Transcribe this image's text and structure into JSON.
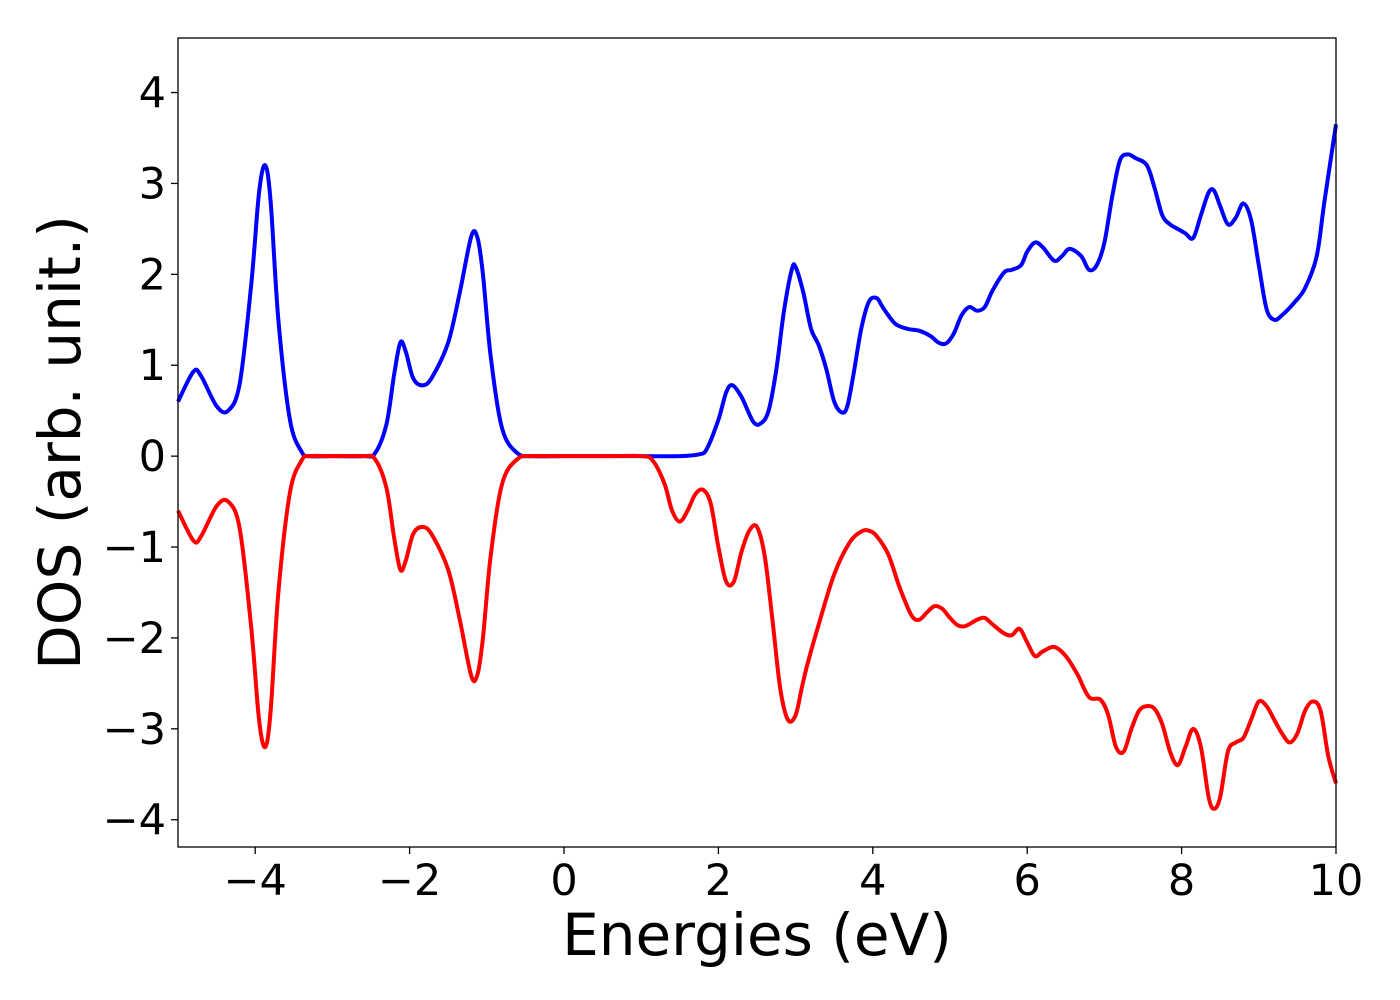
{
  "chart_data": {
    "type": "line",
    "title": "",
    "xlabel": "Energies (eV)",
    "ylabel": "DOS (arb. unit.)",
    "xlim": [
      -5,
      10
    ],
    "ylim": [
      -4.3,
      4.6
    ],
    "xticks": [
      -4,
      -2,
      0,
      2,
      4,
      6,
      8,
      10
    ],
    "xtick_labels": [
      "−4",
      "−2",
      "0",
      "2",
      "4",
      "6",
      "8",
      "10"
    ],
    "yticks": [
      -4,
      -3,
      -2,
      -1,
      0,
      1,
      2,
      3,
      4
    ],
    "ytick_labels": [
      "−4",
      "−3",
      "−2",
      "−1",
      "0",
      "1",
      "2",
      "3",
      "4"
    ],
    "grid": false,
    "legend": "none",
    "series": [
      {
        "color": "#0000ff",
        "x": [
          -5.0,
          -4.8,
          -4.7,
          -4.5,
          -4.35,
          -4.2,
          -4.05,
          -3.95,
          -3.87,
          -3.8,
          -3.7,
          -3.55,
          -3.4,
          -3.3,
          -3.0,
          -2.6,
          -2.45,
          -2.3,
          -2.2,
          -2.12,
          -2.05,
          -1.95,
          -1.82,
          -1.7,
          -1.5,
          -1.35,
          -1.2,
          -1.12,
          -1.05,
          -0.95,
          -0.8,
          -0.6,
          -0.4,
          0.0,
          0.5,
          1.0,
          1.5,
          1.75,
          1.85,
          2.0,
          2.1,
          2.18,
          2.3,
          2.45,
          2.55,
          2.65,
          2.75,
          2.85,
          2.95,
          3.0,
          3.1,
          3.2,
          3.3,
          3.4,
          3.5,
          3.6,
          3.67,
          3.75,
          3.85,
          3.95,
          4.05,
          4.12,
          4.2,
          4.3,
          4.45,
          4.6,
          4.75,
          4.85,
          4.95,
          5.05,
          5.15,
          5.25,
          5.35,
          5.45,
          5.55,
          5.7,
          5.8,
          5.92,
          6.0,
          6.1,
          6.2,
          6.35,
          6.45,
          6.55,
          6.7,
          6.8,
          6.9,
          7.0,
          7.1,
          7.2,
          7.3,
          7.4,
          7.55,
          7.65,
          7.75,
          7.85,
          7.95,
          8.05,
          8.15,
          8.25,
          8.35,
          8.42,
          8.5,
          8.6,
          8.7,
          8.8,
          8.9,
          9.0,
          9.1,
          9.2,
          9.3,
          9.45,
          9.6,
          9.75,
          9.85,
          10.0
        ],
        "y": [
          0.6,
          0.93,
          0.88,
          0.55,
          0.5,
          0.8,
          1.9,
          2.9,
          3.2,
          2.8,
          1.5,
          0.4,
          0.05,
          0.0,
          0.0,
          0.0,
          0.03,
          0.35,
          0.9,
          1.25,
          1.15,
          0.85,
          0.78,
          0.88,
          1.25,
          1.8,
          2.42,
          2.4,
          2.0,
          1.1,
          0.3,
          0.03,
          0.0,
          0.0,
          0.0,
          0.0,
          0.0,
          0.02,
          0.08,
          0.4,
          0.7,
          0.78,
          0.65,
          0.38,
          0.36,
          0.5,
          0.95,
          1.6,
          2.05,
          2.08,
          1.8,
          1.4,
          1.22,
          0.95,
          0.6,
          0.48,
          0.55,
          0.9,
          1.4,
          1.7,
          1.74,
          1.65,
          1.55,
          1.45,
          1.4,
          1.38,
          1.32,
          1.25,
          1.24,
          1.35,
          1.55,
          1.64,
          1.6,
          1.64,
          1.82,
          2.02,
          2.05,
          2.1,
          2.25,
          2.35,
          2.3,
          2.15,
          2.2,
          2.28,
          2.2,
          2.05,
          2.1,
          2.35,
          2.85,
          3.25,
          3.32,
          3.28,
          3.2,
          2.95,
          2.65,
          2.55,
          2.5,
          2.45,
          2.4,
          2.65,
          2.9,
          2.92,
          2.75,
          2.55,
          2.62,
          2.78,
          2.6,
          2.1,
          1.62,
          1.5,
          1.55,
          1.68,
          1.85,
          2.2,
          2.8,
          3.65
        ]
      },
      {
        "color": "#ff0000",
        "x": [
          -5.0,
          -4.8,
          -4.7,
          -4.5,
          -4.35,
          -4.2,
          -4.05,
          -3.95,
          -3.87,
          -3.8,
          -3.7,
          -3.55,
          -3.4,
          -3.3,
          -3.0,
          -2.6,
          -2.45,
          -2.3,
          -2.2,
          -2.12,
          -2.05,
          -1.95,
          -1.82,
          -1.7,
          -1.5,
          -1.35,
          -1.2,
          -1.12,
          -1.05,
          -0.95,
          -0.8,
          -0.6,
          -0.4,
          0.0,
          0.5,
          1.0,
          1.15,
          1.3,
          1.4,
          1.5,
          1.6,
          1.7,
          1.8,
          1.9,
          2.0,
          2.1,
          2.2,
          2.3,
          2.4,
          2.5,
          2.6,
          2.7,
          2.8,
          2.9,
          3.0,
          3.08,
          3.15,
          3.3,
          3.5,
          3.7,
          3.85,
          3.95,
          4.05,
          4.2,
          4.35,
          4.5,
          4.6,
          4.7,
          4.8,
          4.9,
          5.0,
          5.1,
          5.2,
          5.35,
          5.45,
          5.55,
          5.7,
          5.8,
          5.9,
          6.0,
          6.1,
          6.2,
          6.35,
          6.5,
          6.65,
          6.8,
          6.95,
          7.05,
          7.15,
          7.25,
          7.35,
          7.45,
          7.55,
          7.65,
          7.75,
          7.85,
          7.95,
          8.05,
          8.15,
          8.25,
          8.35,
          8.42,
          8.5,
          8.6,
          8.7,
          8.8,
          8.9,
          9.0,
          9.1,
          9.2,
          9.3,
          9.4,
          9.5,
          9.6,
          9.7,
          9.8,
          9.9,
          10.0
        ],
        "y": [
          -0.6,
          -0.93,
          -0.88,
          -0.55,
          -0.5,
          -0.8,
          -1.9,
          -2.9,
          -3.2,
          -2.8,
          -1.5,
          -0.4,
          -0.05,
          0.0,
          0.0,
          0.0,
          -0.03,
          -0.35,
          -0.9,
          -1.25,
          -1.15,
          -0.85,
          -0.78,
          -0.88,
          -1.25,
          -1.8,
          -2.42,
          -2.4,
          -2.0,
          -1.1,
          -0.3,
          -0.03,
          0.0,
          0.0,
          0.0,
          0.0,
          -0.05,
          -0.3,
          -0.6,
          -0.72,
          -0.6,
          -0.42,
          -0.37,
          -0.52,
          -1.0,
          -1.38,
          -1.38,
          -1.05,
          -0.82,
          -0.78,
          -1.1,
          -1.8,
          -2.55,
          -2.9,
          -2.85,
          -2.55,
          -2.3,
          -1.85,
          -1.3,
          -0.95,
          -0.83,
          -0.82,
          -0.88,
          -1.08,
          -1.45,
          -1.75,
          -1.8,
          -1.72,
          -1.65,
          -1.68,
          -1.78,
          -1.86,
          -1.87,
          -1.8,
          -1.78,
          -1.85,
          -1.95,
          -1.97,
          -1.9,
          -2.05,
          -2.2,
          -2.15,
          -2.1,
          -2.2,
          -2.4,
          -2.65,
          -2.68,
          -2.85,
          -3.2,
          -3.25,
          -3.0,
          -2.8,
          -2.75,
          -2.78,
          -2.95,
          -3.25,
          -3.4,
          -3.2,
          -3.0,
          -3.2,
          -3.75,
          -3.88,
          -3.75,
          -3.25,
          -3.15,
          -3.1,
          -2.9,
          -2.7,
          -2.75,
          -2.9,
          -3.05,
          -3.15,
          -3.05,
          -2.8,
          -2.7,
          -2.8,
          -3.3,
          -3.6
        ]
      }
    ]
  }
}
